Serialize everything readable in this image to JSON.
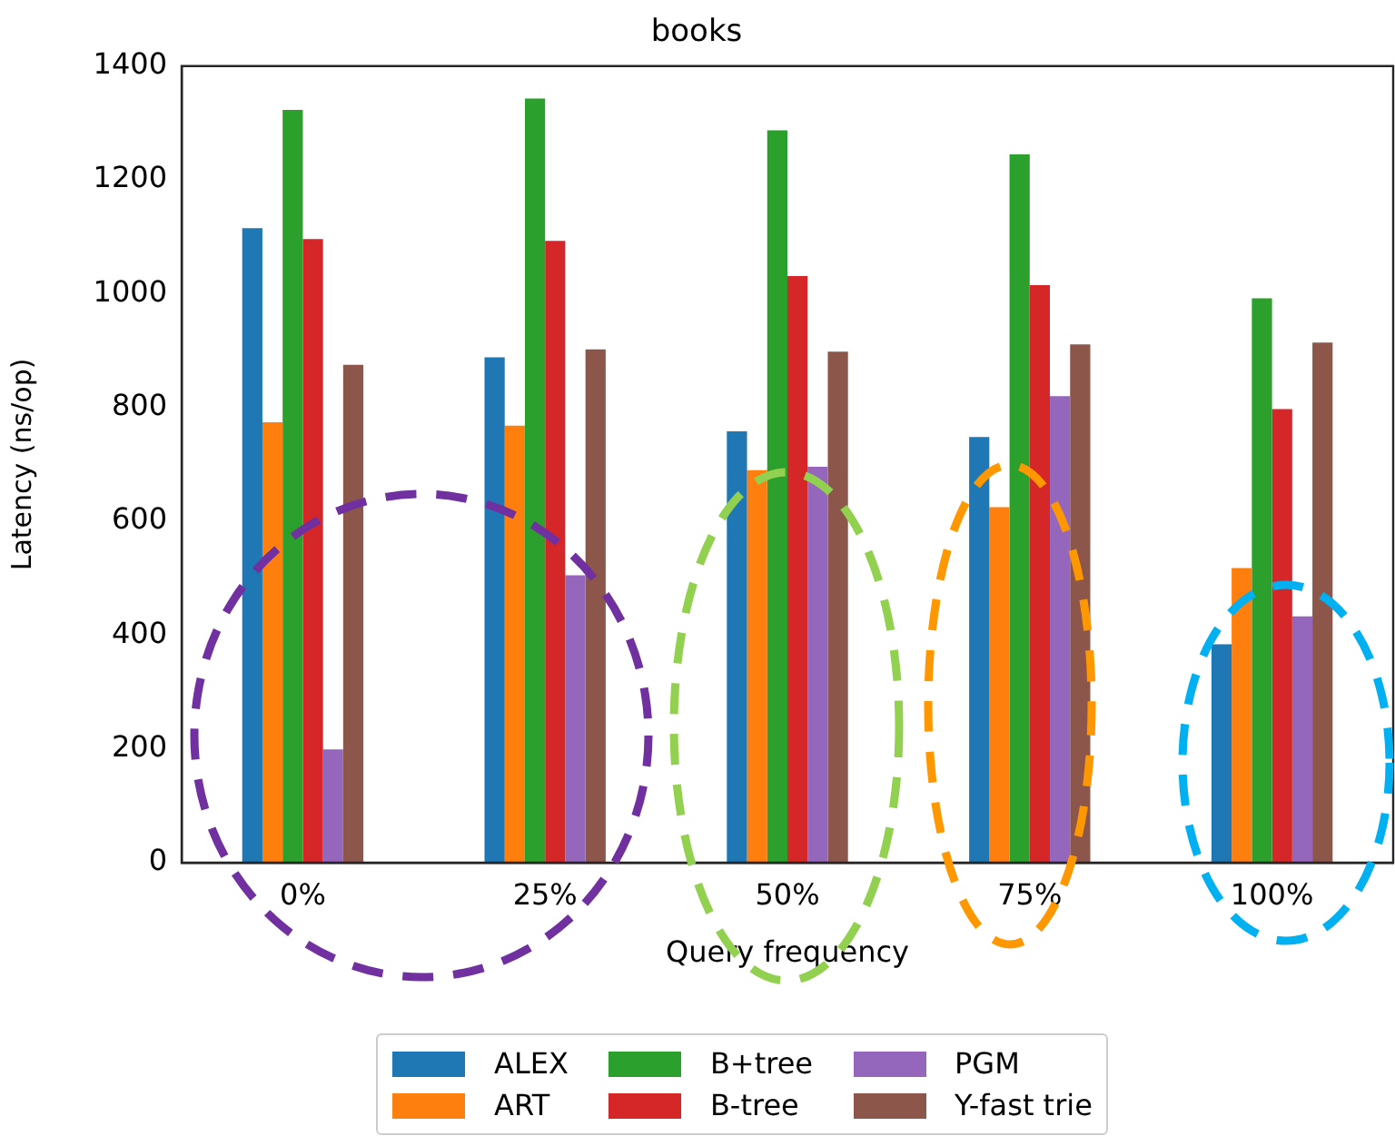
{
  "chart_data": {
    "type": "bar",
    "title": "books",
    "xlabel": "Query frequency",
    "ylabel": "Latency (ns/op)",
    "categories": [
      "0%",
      "25%",
      "50%",
      "75%",
      "100%"
    ],
    "series": [
      {
        "name": "ALEX",
        "color": "#1f77b4",
        "values": [
          1115,
          888,
          758,
          748,
          384
        ]
      },
      {
        "name": "ART",
        "color": "#ff7f0e",
        "values": [
          774,
          768,
          690,
          625,
          518
        ]
      },
      {
        "name": "B+tree",
        "color": "#2ca02c",
        "values": [
          1323,
          1343,
          1287,
          1245,
          992
        ]
      },
      {
        "name": "B-tree",
        "color": "#d62728",
        "values": [
          1096,
          1093,
          1031,
          1015,
          797
        ]
      },
      {
        "name": "PGM",
        "color": "#9467bd",
        "values": [
          199,
          505,
          696,
          820,
          433
        ]
      },
      {
        "name": "Y-fast trie",
        "color": "#8c564b",
        "values": [
          875,
          902,
          898,
          911,
          914
        ]
      }
    ],
    "ylim": [
      0,
      1400
    ],
    "yticks": [
      0,
      200,
      400,
      600,
      800,
      1000,
      1200,
      1400
    ],
    "grid": false,
    "legend": "bottom"
  }
}
